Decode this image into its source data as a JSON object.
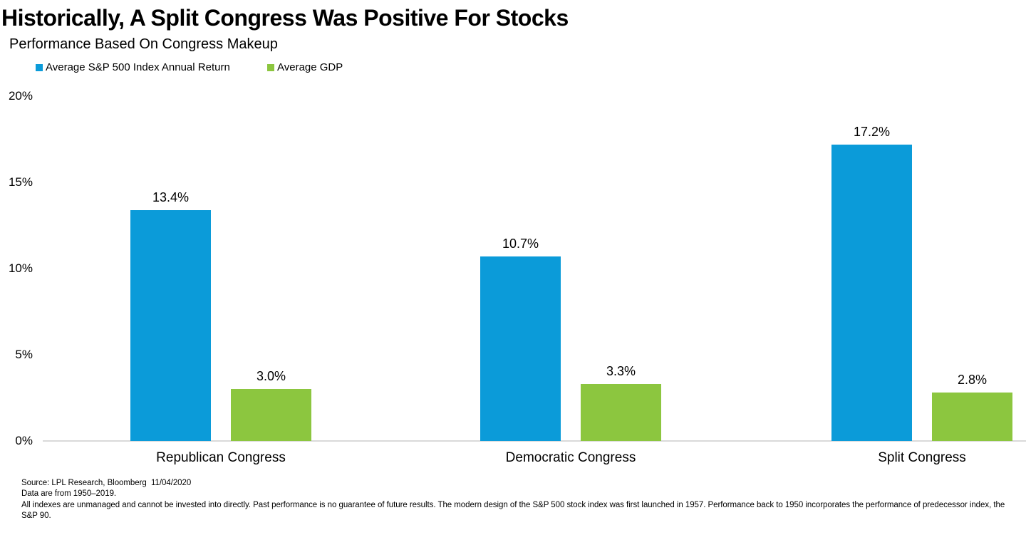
{
  "chart": {
    "title": "Historically, A Split Congress Was Positive For Stocks",
    "subtitle": "Performance Based On Congress Makeup"
  },
  "chart_data": {
    "type": "bar",
    "title": "Historically, A Split Congress Was Positive For Stocks",
    "subtitle": "Performance Based On Congress Makeup",
    "categories": [
      "Republican Congress",
      "Democratic Congress",
      "Split Congress"
    ],
    "series": [
      {
        "name": "Average S&P 500 Index Annual Return",
        "color": "#0B9BD9",
        "values": [
          13.4,
          10.7,
          17.2
        ]
      },
      {
        "name": "Average GDP",
        "color": "#8CC63F",
        "values": [
          3.0,
          3.3,
          2.8
        ]
      }
    ],
    "value_label_format": "{v}%",
    "xlabel": "",
    "ylabel": "",
    "ylim": [
      0,
      20
    ],
    "yticks": [
      0,
      5,
      10,
      15,
      20
    ],
    "ytick_format": "{v}%",
    "grid": false,
    "legend_position": "top-left",
    "axis_line_color": "#D9D9D9",
    "text_color": "#000000"
  },
  "footer": {
    "source_line": "Source: LPL Research, Bloomberg  11/04/2020",
    "range_line": "Data are from 1950–2019.",
    "disclaimer": "All indexes are unmanaged and cannot be invested into directly. Past performance is no guarantee of future results. The modern design of the S&P 500 stock index was first launched in 1957. Performance back to 1950 incorporates the performance of predecessor index, the S&P 90."
  }
}
